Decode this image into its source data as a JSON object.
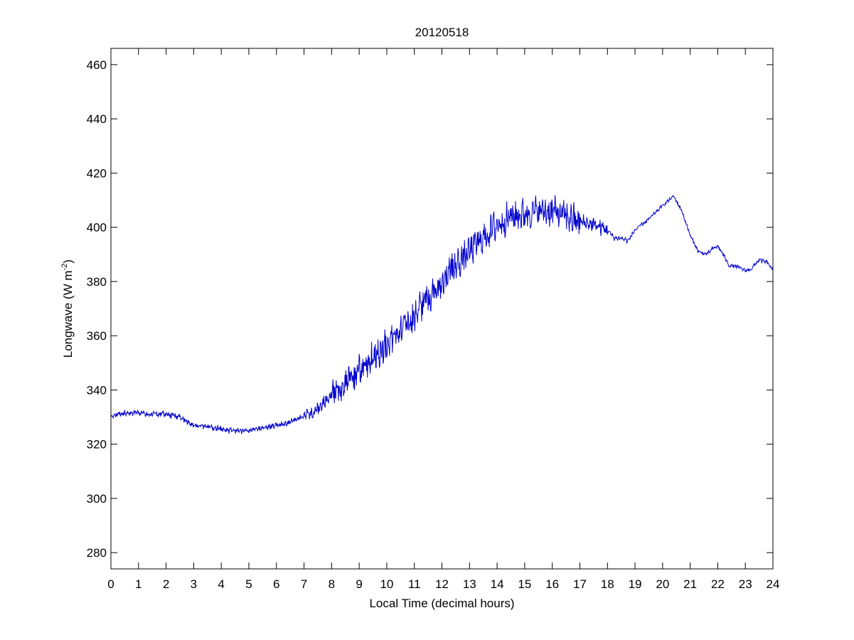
{
  "chart_data": {
    "type": "line",
    "title": "20120518",
    "xlabel": "Local Time (decimal hours)",
    "ylabel_main": "Longwave (W m",
    "ylabel_sup": "-2",
    "ylabel_close": ")",
    "xlim": [
      0,
      24
    ],
    "ylim": [
      274,
      466
    ],
    "xticks": [
      0,
      1,
      2,
      3,
      4,
      5,
      6,
      7,
      8,
      9,
      10,
      11,
      12,
      13,
      14,
      15,
      16,
      17,
      18,
      19,
      20,
      21,
      22,
      23,
      24
    ],
    "yticks": [
      280,
      300,
      320,
      340,
      360,
      380,
      400,
      420,
      440,
      460
    ],
    "grid": false,
    "line_color": "#0000cc",
    "series": [
      {
        "x": [
          0,
          0.5,
          1,
          1.5,
          2,
          2.5,
          3,
          3.5,
          4,
          4.5,
          5,
          5.5,
          6,
          6.5,
          7,
          7.5,
          8,
          8.5,
          9,
          9.5,
          10,
          10.5,
          11,
          11.5,
          12,
          12.5,
          13,
          13.5,
          14,
          14.5,
          15,
          15.5,
          16,
          16.5,
          17,
          17.5,
          18,
          18.25,
          18.5,
          18.75,
          19,
          19.5,
          20,
          20.4,
          20.7,
          21,
          21.3,
          21.6,
          21.8,
          22,
          22.2,
          22.4,
          22.7,
          23,
          23.2,
          23.5,
          23.8,
          24
        ],
        "y": [
          330.5,
          331.5,
          331.5,
          331,
          331,
          330,
          327,
          326.5,
          325.5,
          325,
          325,
          326,
          327,
          328,
          330.5,
          333,
          339,
          342,
          347,
          352,
          357,
          363,
          368,
          374,
          380,
          386,
          391,
          396,
          401,
          404,
          405,
          406,
          406,
          404,
          402,
          401,
          399,
          396,
          396,
          395,
          399,
          403,
          408,
          411.5,
          406,
          397,
          391,
          390,
          392,
          393,
          390,
          386,
          385.5,
          384,
          384.5,
          388,
          387,
          384
        ]
      }
    ],
    "noise_amplitude": [
      {
        "from": 0,
        "to": 7,
        "amp": 0.9
      },
      {
        "from": 7,
        "to": 8,
        "amp": 2.0
      },
      {
        "from": 8,
        "to": 17,
        "amp": 5.0
      },
      {
        "from": 17,
        "to": 18,
        "amp": 2.5
      },
      {
        "from": 18,
        "to": 19,
        "amp": 0.8
      },
      {
        "from": 19,
        "to": 24,
        "amp": 0.6
      }
    ]
  }
}
